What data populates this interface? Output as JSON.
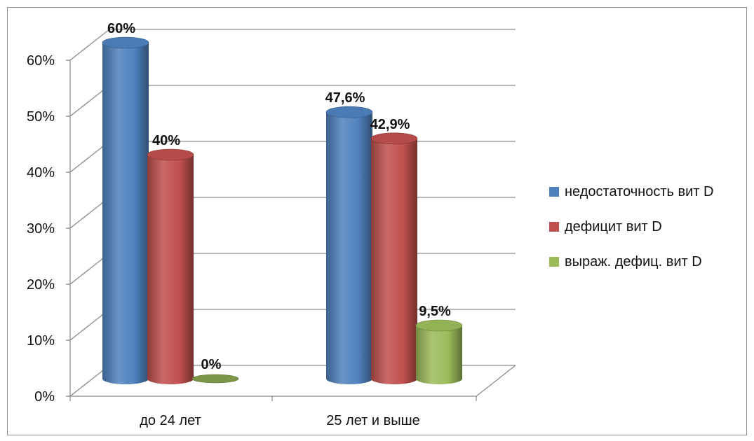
{
  "chart_data": {
    "type": "bar",
    "style": "3d-cylinder",
    "categories": [
      "до 24 лет",
      "25 лет и выше"
    ],
    "series": [
      {
        "name": "недостаточность вит D",
        "color": "#4f81bd",
        "values": [
          60,
          47.6
        ],
        "labels": [
          "60%",
          "47,6%"
        ]
      },
      {
        "name": "дефицит вит D",
        "color": "#c0504d",
        "values": [
          40,
          42.9
        ],
        "labels": [
          "40%",
          "42,9%"
        ]
      },
      {
        "name": "выраж. дефиц. вит D",
        "color": "#9bbb59",
        "values": [
          0,
          9.5
        ],
        "labels": [
          "0%",
          "9,5%"
        ]
      }
    ],
    "y_ticks": [
      0,
      10,
      20,
      30,
      40,
      50,
      60
    ],
    "y_tick_labels": [
      "0%",
      "10%",
      "20%",
      "30%",
      "40%",
      "50%",
      "60%"
    ],
    "ylim": [
      0,
      60
    ],
    "grid": true,
    "legend_position": "right"
  }
}
